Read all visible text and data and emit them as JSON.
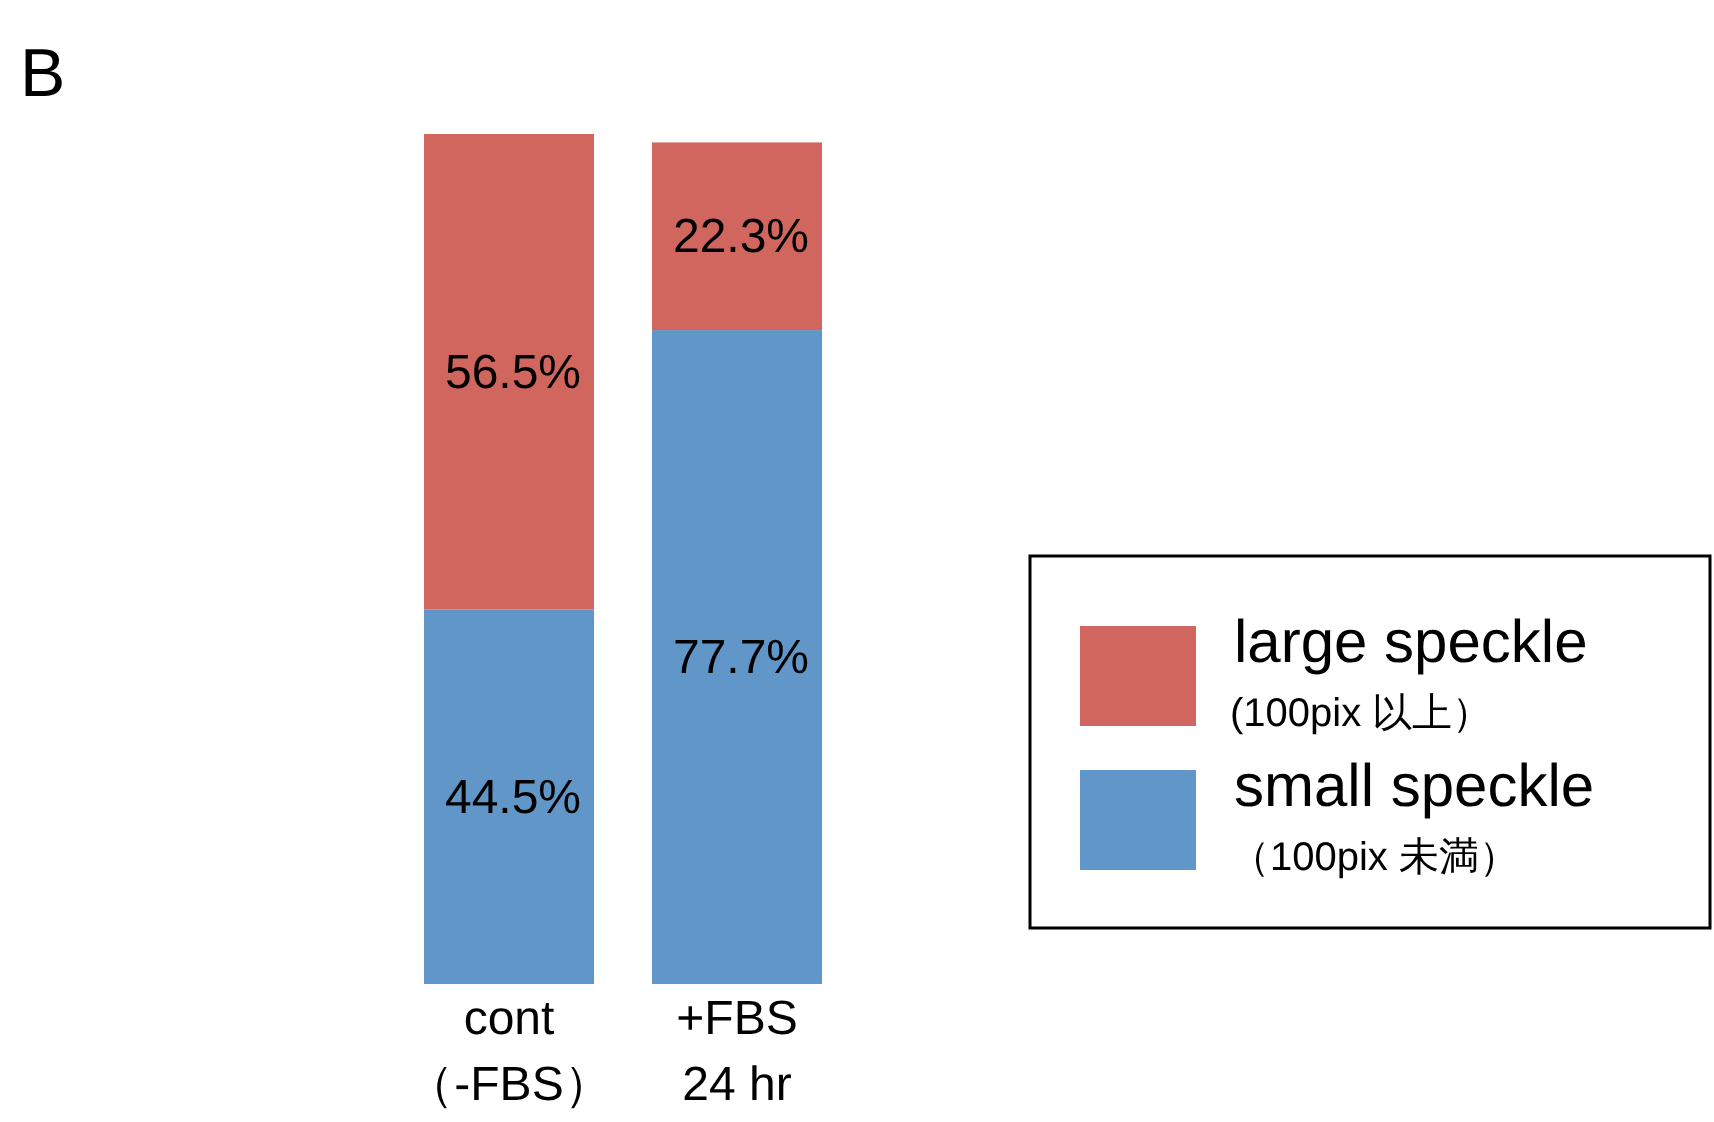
{
  "chart_data": {
    "type": "bar",
    "title": "B",
    "stacked": true,
    "data_labels": true,
    "legend": "right",
    "categories": [
      "cont\n（-FBS）",
      "+FBS\n24 hr"
    ],
    "series": [
      {
        "name": "small speckle\n（100pix 未満）",
        "color": "#6097c8",
        "values": [
          44.5,
          77.7
        ],
        "value_labels": [
          "44.5%",
          "77.7%"
        ]
      },
      {
        "name": "large speckle\n(100pix 以上）",
        "color": "#d0665e",
        "values": [
          56.5,
          22.3
        ],
        "value_labels": [
          "56.5%",
          "22.3%"
        ]
      }
    ]
  }
}
